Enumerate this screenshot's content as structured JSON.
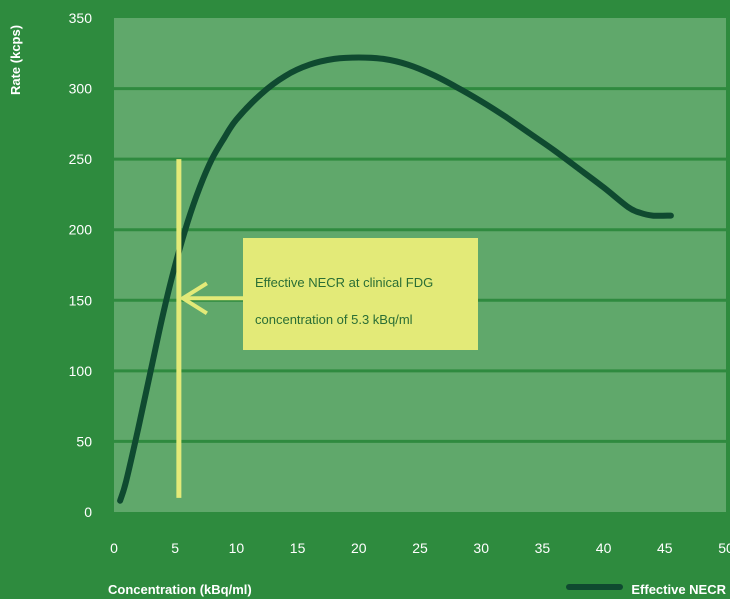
{
  "chart_data": {
    "type": "line",
    "xlabel": "Concentration (kBq/ml)",
    "ylabel": "Rate (kcps)",
    "xlim": [
      0,
      50
    ],
    "ylim": [
      0,
      350
    ],
    "x_ticks": [
      0,
      5,
      10,
      15,
      20,
      25,
      30,
      35,
      40,
      45,
      50
    ],
    "y_ticks": [
      0,
      50,
      100,
      150,
      200,
      250,
      300,
      350
    ],
    "grid": "horizontal",
    "legend_position": "bottom-right",
    "series": [
      {
        "name": "Effective NECR",
        "x": [
          0.5,
          1,
          2,
          3,
          4,
          5,
          6,
          7,
          8,
          9,
          10,
          12,
          14,
          16,
          18,
          20,
          22,
          24,
          26,
          28,
          30,
          32,
          34,
          36,
          38,
          40,
          42,
          43,
          44,
          45.5
        ],
        "y": [
          8,
          22,
          60,
          100,
          140,
          175,
          205,
          230,
          250,
          265,
          278,
          296,
          309,
          317,
          321,
          322,
          321,
          317,
          310,
          301,
          291,
          280,
          268,
          256,
          243,
          230,
          216,
          212,
          210,
          210
        ]
      }
    ],
    "marker": {
      "x": 5.3,
      "y_range": [
        10,
        250
      ],
      "y_arrow": 150
    },
    "annotation": {
      "lines": [
        "Effective NECR at clinical FDG",
        "concentration of 5.3 kBq/ml"
      ]
    }
  },
  "colors": {
    "background": "#2e8b3e",
    "plot_area": "#60a86b",
    "gridline": "#2f8a3f",
    "series": "#0f4a30",
    "marker": "#e3ea78",
    "annotation_box": "#e3ea78",
    "annotation_text": "#2a6e35"
  }
}
